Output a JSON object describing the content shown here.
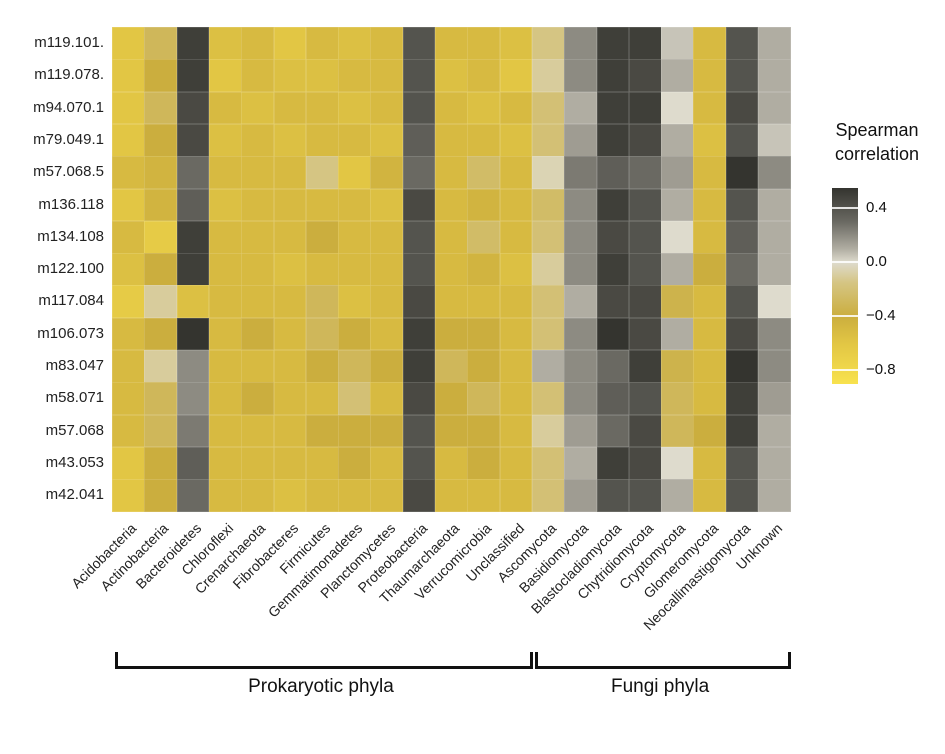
{
  "chart_data": {
    "type": "heatmap",
    "legend": {
      "title_line1": "Spearman",
      "title_line2": "correlation",
      "ticks": [
        {
          "value": 0.4,
          "label": "0.4"
        },
        {
          "value": 0.0,
          "label": "0.0"
        },
        {
          "value": -0.4,
          "label": "−0.4"
        },
        {
          "value": -0.8,
          "label": "−0.8"
        }
      ],
      "domain_max": 0.55,
      "domain_min": -0.9,
      "position": "right"
    },
    "colors": {
      "stops": [
        {
          "v": 0.55,
          "hex": "#34342f"
        },
        {
          "v": 0.3,
          "hex": "#6a6962"
        },
        {
          "v": 0.1,
          "hex": "#b0ada2"
        },
        {
          "v": 0.0,
          "hex": "#dedbcd"
        },
        {
          "v": -0.15,
          "hex": "#d5c583"
        },
        {
          "v": -0.4,
          "hex": "#cbae3e"
        },
        {
          "v": -0.6,
          "hex": "#e2c644"
        },
        {
          "v": -0.9,
          "hex": "#f8e24e"
        }
      ]
    },
    "rows": [
      "m119.101.",
      "m119.078.",
      "m94.070.1",
      "m79.049.1",
      "m57.068.5",
      "m136.118",
      "m134.108",
      "m122.100",
      "m117.084",
      "m106.073",
      "m83.047",
      "m58.071",
      "m57.068",
      "m43.053",
      "m42.041"
    ],
    "columns": [
      "Acidobacteria",
      "Actinobacteria",
      "Bacteroidetes",
      "Chloroflexi",
      "Crenarchaeota",
      "Fibrobacteres",
      "Firmicutes",
      "Gemmatimonadetes",
      "Planctomycetes",
      "Proteobacteria",
      "Thaumarchaeota",
      "Verrucomicrobia",
      "Unclassified",
      "Ascomycota",
      "Basidiomycota",
      "Blastocladiomycota",
      "Chytridiomycota",
      "Cryptomycota",
      "Glomeromycota",
      "Neocallimastigomycota",
      "Unknown"
    ],
    "groups": [
      {
        "label": "Prokaryotic phyla",
        "start": 0,
        "end": 12
      },
      {
        "label": "Fungi phyla",
        "start": 13,
        "end": 20
      }
    ],
    "values": [
      [
        -0.6,
        -0.3,
        0.5,
        -0.55,
        -0.5,
        -0.6,
        -0.5,
        -0.55,
        -0.5,
        0.4,
        -0.5,
        -0.5,
        -0.55,
        -0.15,
        0.2,
        0.5,
        0.5,
        0.05,
        -0.5,
        0.4,
        0.1
      ],
      [
        -0.6,
        -0.4,
        0.5,
        -0.6,
        -0.5,
        -0.55,
        -0.55,
        -0.5,
        -0.5,
        0.4,
        -0.55,
        -0.5,
        -0.6,
        -0.1,
        0.2,
        0.5,
        0.45,
        0.1,
        -0.5,
        0.4,
        0.1
      ],
      [
        -0.6,
        -0.3,
        0.45,
        -0.5,
        -0.55,
        -0.5,
        -0.5,
        -0.55,
        -0.5,
        0.4,
        -0.5,
        -0.55,
        -0.5,
        -0.2,
        0.1,
        0.5,
        0.5,
        0.0,
        -0.5,
        0.45,
        0.1
      ],
      [
        -0.6,
        -0.4,
        0.45,
        -0.55,
        -0.5,
        -0.55,
        -0.5,
        -0.5,
        -0.55,
        0.35,
        -0.5,
        -0.5,
        -0.55,
        -0.2,
        0.15,
        0.5,
        0.45,
        0.1,
        -0.55,
        0.4,
        0.05
      ],
      [
        -0.5,
        -0.45,
        0.3,
        -0.5,
        -0.5,
        -0.5,
        -0.15,
        -0.6,
        -0.45,
        0.3,
        -0.5,
        -0.25,
        -0.5,
        -0.05,
        0.25,
        0.35,
        0.3,
        0.15,
        -0.5,
        0.55,
        0.2
      ],
      [
        -0.6,
        -0.45,
        0.35,
        -0.55,
        -0.5,
        -0.5,
        -0.5,
        -0.5,
        -0.55,
        0.45,
        -0.5,
        -0.45,
        -0.5,
        -0.25,
        0.2,
        0.5,
        0.4,
        0.1,
        -0.5,
        0.4,
        0.1
      ],
      [
        -0.5,
        -0.65,
        0.5,
        -0.5,
        -0.5,
        -0.5,
        -0.4,
        -0.5,
        -0.5,
        0.4,
        -0.5,
        -0.25,
        -0.5,
        -0.2,
        0.2,
        0.45,
        0.4,
        0.0,
        -0.5,
        0.35,
        0.1
      ],
      [
        -0.55,
        -0.4,
        0.5,
        -0.5,
        -0.5,
        -0.55,
        -0.5,
        -0.5,
        -0.5,
        0.4,
        -0.5,
        -0.45,
        -0.55,
        -0.1,
        0.2,
        0.5,
        0.4,
        0.1,
        -0.4,
        0.3,
        0.1
      ],
      [
        -0.65,
        -0.1,
        -0.55,
        -0.5,
        -0.5,
        -0.5,
        -0.3,
        -0.55,
        -0.5,
        0.45,
        -0.5,
        -0.5,
        -0.5,
        -0.2,
        0.1,
        0.45,
        0.45,
        -0.35,
        -0.5,
        0.4,
        0.0
      ],
      [
        -0.5,
        -0.4,
        0.55,
        -0.5,
        -0.4,
        -0.5,
        -0.3,
        -0.4,
        -0.5,
        0.5,
        -0.4,
        -0.4,
        -0.5,
        -0.2,
        0.2,
        0.6,
        0.45,
        0.1,
        -0.5,
        0.45,
        0.2
      ],
      [
        -0.5,
        -0.1,
        0.2,
        -0.5,
        -0.5,
        -0.5,
        -0.4,
        -0.3,
        -0.4,
        0.5,
        -0.3,
        -0.4,
        -0.5,
        0.1,
        0.2,
        0.3,
        0.5,
        -0.35,
        -0.5,
        0.55,
        0.2
      ],
      [
        -0.5,
        -0.3,
        0.2,
        -0.5,
        -0.4,
        -0.5,
        -0.5,
        -0.2,
        -0.5,
        0.45,
        -0.4,
        -0.3,
        -0.5,
        -0.2,
        0.2,
        0.35,
        0.4,
        -0.3,
        -0.5,
        0.5,
        0.15
      ],
      [
        -0.5,
        -0.3,
        0.25,
        -0.5,
        -0.5,
        -0.5,
        -0.4,
        -0.4,
        -0.4,
        0.4,
        -0.4,
        -0.4,
        -0.5,
        -0.1,
        0.15,
        0.3,
        0.45,
        -0.3,
        -0.4,
        0.5,
        0.1
      ],
      [
        -0.6,
        -0.4,
        0.35,
        -0.5,
        -0.5,
        -0.5,
        -0.5,
        -0.4,
        -0.5,
        0.4,
        -0.5,
        -0.4,
        -0.5,
        -0.2,
        0.1,
        0.5,
        0.45,
        0.0,
        -0.5,
        0.4,
        0.1
      ],
      [
        -0.6,
        -0.4,
        0.3,
        -0.5,
        -0.5,
        -0.55,
        -0.5,
        -0.5,
        -0.5,
        0.45,
        -0.5,
        -0.5,
        -0.5,
        -0.2,
        0.15,
        0.4,
        0.4,
        0.1,
        -0.5,
        0.4,
        0.1
      ]
    ]
  }
}
